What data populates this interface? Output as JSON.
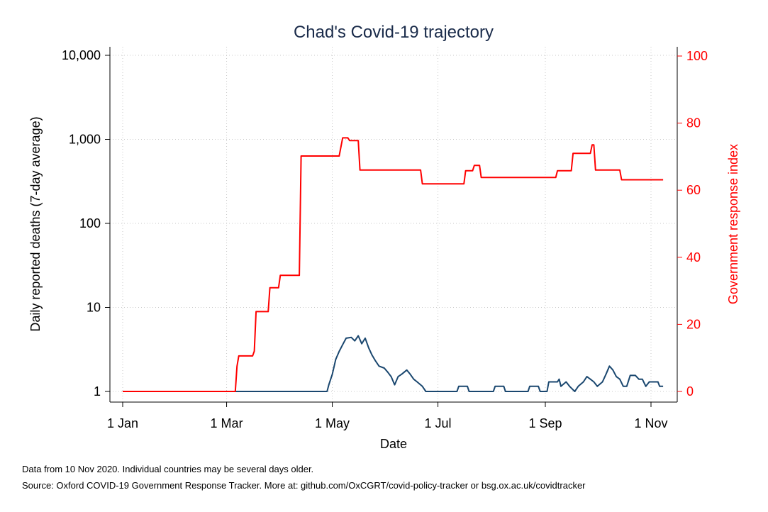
{
  "chart_data": {
    "type": "line",
    "title": "Chad's Covid-19 trajectory",
    "xlabel": "Date",
    "ylabel_left": "Daily reported deaths (7-day average)",
    "ylabel_right": "Government response index",
    "x_ticks": [
      "1 Jan",
      "1 Mar",
      "1 May",
      "1 Jul",
      "1 Sep",
      "1 Nov"
    ],
    "y_left_ticks": [
      "1",
      "10",
      "100",
      "1,000",
      "10,000"
    ],
    "y_left_scale": "log",
    "y_left_range": [
      1,
      10000
    ],
    "y_right_ticks": [
      "0",
      "20",
      "40",
      "60",
      "80",
      "100"
    ],
    "y_right_range": [
      0,
      100
    ],
    "x_range": [
      "2020-01-01",
      "2020-11-10"
    ],
    "grid": true,
    "colors": {
      "deaths": "#1a476f",
      "stringency": "#ff0000",
      "grid": "#c8c8c8",
      "title": "#1a2b4a",
      "right_axis": "#ff0000"
    },
    "series": [
      {
        "name": "Daily reported deaths (7-day average)",
        "axis": "left",
        "points": [
          [
            "2020-01-01",
            1
          ],
          [
            "2020-04-28",
            1
          ],
          [
            "2020-04-29",
            1.2
          ],
          [
            "2020-05-01",
            1.6
          ],
          [
            "2020-05-03",
            2.4
          ],
          [
            "2020-05-05",
            3.0
          ],
          [
            "2020-05-07",
            3.6
          ],
          [
            "2020-05-09",
            4.3
          ],
          [
            "2020-05-12",
            4.4
          ],
          [
            "2020-05-14",
            4.0
          ],
          [
            "2020-05-16",
            4.6
          ],
          [
            "2020-05-18",
            3.7
          ],
          [
            "2020-05-20",
            4.3
          ],
          [
            "2020-05-22",
            3.3
          ],
          [
            "2020-05-24",
            2.7
          ],
          [
            "2020-05-26",
            2.3
          ],
          [
            "2020-05-28",
            2.0
          ],
          [
            "2020-05-31",
            1.9
          ],
          [
            "2020-06-02",
            1.7
          ],
          [
            "2020-06-04",
            1.5
          ],
          [
            "2020-06-06",
            1.2
          ],
          [
            "2020-06-08",
            1.5
          ],
          [
            "2020-06-10",
            1.6
          ],
          [
            "2020-06-13",
            1.8
          ],
          [
            "2020-06-15",
            1.6
          ],
          [
            "2020-06-17",
            1.4
          ],
          [
            "2020-06-19",
            1.3
          ],
          [
            "2020-06-22",
            1.15
          ],
          [
            "2020-06-24",
            1
          ],
          [
            "2020-07-12",
            1
          ],
          [
            "2020-07-13",
            1.15
          ],
          [
            "2020-07-18",
            1.15
          ],
          [
            "2020-07-19",
            1
          ],
          [
            "2020-08-02",
            1
          ],
          [
            "2020-08-03",
            1.15
          ],
          [
            "2020-08-08",
            1.15
          ],
          [
            "2020-08-09",
            1
          ],
          [
            "2020-08-22",
            1
          ],
          [
            "2020-08-23",
            1.15
          ],
          [
            "2020-08-28",
            1.15
          ],
          [
            "2020-08-29",
            1
          ],
          [
            "2020-09-02",
            1
          ],
          [
            "2020-09-03",
            1.3
          ],
          [
            "2020-09-08",
            1.3
          ],
          [
            "2020-09-09",
            1.4
          ],
          [
            "2020-09-10",
            1.15
          ],
          [
            "2020-09-13",
            1.3
          ],
          [
            "2020-09-15",
            1.15
          ],
          [
            "2020-09-18",
            1
          ],
          [
            "2020-09-20",
            1.15
          ],
          [
            "2020-09-23",
            1.3
          ],
          [
            "2020-09-25",
            1.5
          ],
          [
            "2020-09-27",
            1.4
          ],
          [
            "2020-09-29",
            1.3
          ],
          [
            "2020-10-01",
            1.15
          ],
          [
            "2020-10-04",
            1.3
          ],
          [
            "2020-10-06",
            1.6
          ],
          [
            "2020-10-08",
            2.0
          ],
          [
            "2020-10-10",
            1.8
          ],
          [
            "2020-10-12",
            1.5
          ],
          [
            "2020-10-14",
            1.4
          ],
          [
            "2020-10-16",
            1.15
          ],
          [
            "2020-10-18",
            1.15
          ],
          [
            "2020-10-20",
            1.55
          ],
          [
            "2020-10-23",
            1.55
          ],
          [
            "2020-10-25",
            1.4
          ],
          [
            "2020-10-27",
            1.4
          ],
          [
            "2020-10-29",
            1.15
          ],
          [
            "2020-10-31",
            1.3
          ],
          [
            "2020-11-05",
            1.3
          ],
          [
            "2020-11-06",
            1.15
          ],
          [
            "2020-11-08",
            1.15
          ]
        ]
      },
      {
        "name": "Government response index",
        "axis": "right",
        "points": [
          [
            "2020-01-01",
            0
          ],
          [
            "2020-03-06",
            0
          ],
          [
            "2020-03-07",
            7.5
          ],
          [
            "2020-03-08",
            10.6
          ],
          [
            "2020-03-16",
            10.6
          ],
          [
            "2020-03-17",
            12
          ],
          [
            "2020-03-18",
            23.8
          ],
          [
            "2020-03-25",
            23.8
          ],
          [
            "2020-03-26",
            30.9
          ],
          [
            "2020-03-31",
            30.9
          ],
          [
            "2020-04-01",
            34.6
          ],
          [
            "2020-04-12",
            34.6
          ],
          [
            "2020-04-13",
            70.2
          ],
          [
            "2020-05-05",
            70.2
          ],
          [
            "2020-05-07",
            75.6
          ],
          [
            "2020-05-10",
            75.6
          ],
          [
            "2020-05-11",
            74.8
          ],
          [
            "2020-05-16",
            74.8
          ],
          [
            "2020-05-17",
            66
          ],
          [
            "2020-06-21",
            66
          ],
          [
            "2020-06-22",
            61.9
          ],
          [
            "2020-07-16",
            61.9
          ],
          [
            "2020-07-17",
            65.8
          ],
          [
            "2020-07-21",
            65.8
          ],
          [
            "2020-07-22",
            67.4
          ],
          [
            "2020-07-25",
            67.4
          ],
          [
            "2020-07-26",
            63.8
          ],
          [
            "2020-09-07",
            63.8
          ],
          [
            "2020-09-08",
            65.8
          ],
          [
            "2020-09-16",
            65.8
          ],
          [
            "2020-09-17",
            71
          ],
          [
            "2020-09-27",
            71
          ],
          [
            "2020-09-28",
            73.5
          ],
          [
            "2020-09-29",
            73.5
          ],
          [
            "2020-09-30",
            66
          ],
          [
            "2020-10-14",
            66
          ],
          [
            "2020-10-15",
            63.1
          ],
          [
            "2020-11-08",
            63.1
          ]
        ]
      }
    ]
  },
  "footnotes": {
    "line1": "Data from 10 Nov 2020. Individual countries may be several days older.",
    "line2": "Source: Oxford COVID-19 Government Response Tracker. More at: github.com/OxCGRT/covid-policy-tracker or bsg.ox.ac.uk/covidtracker"
  }
}
